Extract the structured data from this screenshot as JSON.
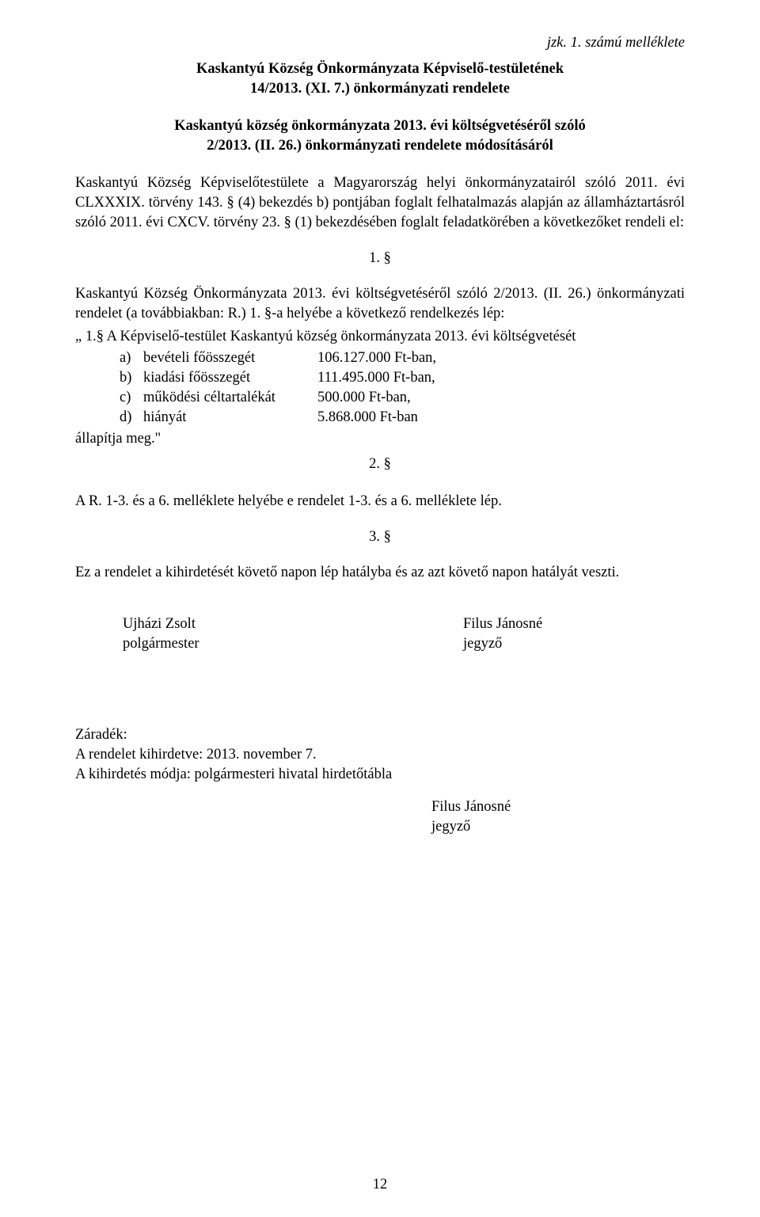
{
  "attachment_note": "jzk. 1. számú melléklete",
  "title": {
    "line1": "Kaskantyú Község Önkormányzata Képviselő-testületének",
    "line2": "14/2013. (XI. 7.) önkormányzati rendelete"
  },
  "subhead": {
    "line1": "Kaskantyú község önkormányzata 2013. évi költségvetéséről szóló",
    "line2": "2/2013. (II. 26.) önkormányzati rendelete módosításáról"
  },
  "preamble": "Kaskantyú Község Képviselőtestülete a Magyarország helyi önkormányzatairól szóló 2011. évi CLXXXIX. törvény 143. § (4) bekezdés b) pontjában foglalt felhatalmazás alapján az államháztartásról szóló 2011. évi CXCV. törvény 23. § (1) bekezdésében foglalt feladatkörében a következőket rendeli el:",
  "sections": {
    "s1": "1. §",
    "s2": "2. §",
    "s3": "3. §"
  },
  "s1_para": "Kaskantyú Község Önkormányzata 2013. évi költségvetéséről szóló 2/2013. (II. 26.) önkormányzati rendelet (a továbbiakban: R.) 1. §-a helyébe a következő rendelkezés lép:",
  "s1_list_intro": "„ 1.§ A Képviselő-testület Kaskantyú község önkormányzata 2013. évi költségvetését",
  "s1_list": [
    {
      "label": "a)",
      "text": "bevételi főösszegét",
      "amount": "106.127.000 Ft-ban,"
    },
    {
      "label": "b)",
      "text": "kiadási főösszegét",
      "amount": "111.495.000 Ft-ban,"
    },
    {
      "label": "c)",
      "text": "működési céltartalékát",
      "amount": "500.000 Ft-ban,"
    },
    {
      "label": "d)",
      "text": "hiányát",
      "amount": "5.868.000 Ft-ban"
    }
  ],
  "s1_after": "állapítja meg.\"",
  "s2_para": "A R. 1-3. és a 6. melléklete helyébe e rendelet 1-3. és a 6. melléklete lép.",
  "s3_para": "Ez a rendelet a kihirdetését követő napon lép hatályba és az azt követő napon hatályát veszti.",
  "signatories": {
    "left_name": "Ujházi Zsolt",
    "left_title": "polgármester",
    "right_name": "Filus Jánosné",
    "right_title": "jegyző"
  },
  "zaradek": {
    "heading": "Záradék:",
    "line1": "A rendelet kihirdetve: 2013. november 7.",
    "line2": "A kihirdetés módja: polgármesteri hivatal hirdetőtábla",
    "sign_name": "Filus Jánosné",
    "sign_title": "jegyző"
  },
  "page_number": "12"
}
